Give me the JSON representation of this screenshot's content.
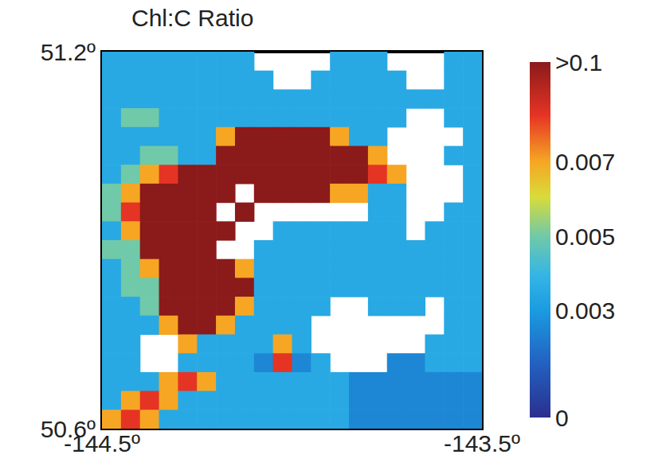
{
  "chart_data": {
    "type": "heatmap",
    "title": "Chl:C Ratio",
    "xlim": [
      -144.5,
      -143.5
    ],
    "ylim": [
      50.6,
      51.2
    ],
    "xticks": [
      {
        "value": -144.5,
        "label": "-144.5º"
      },
      {
        "value": -143.5,
        "label": "-143.5º"
      }
    ],
    "yticks": [
      {
        "value": 50.6,
        "label": "50.6º"
      },
      {
        "value": 51.2,
        "label": "51.2º"
      }
    ],
    "cells": [
      [
        0.0035,
        0.0035,
        0.0035,
        0.0035,
        0.0035,
        0.0035,
        0.0035,
        0.0035,
        null,
        null,
        null,
        null,
        0.0035,
        0.0035,
        0.0035,
        null,
        null,
        null,
        0.0035,
        0.0035
      ],
      [
        0.0035,
        0.0035,
        0.0035,
        0.0035,
        0.0035,
        0.0035,
        0.0035,
        0.0035,
        0.0035,
        null,
        null,
        0.0035,
        0.0035,
        0.0035,
        0.0035,
        0.0035,
        null,
        null,
        0.0035,
        0.0035
      ],
      [
        0.0035,
        0.0035,
        0.0035,
        0.0035,
        0.0035,
        0.0035,
        0.0035,
        0.0035,
        0.0035,
        0.0035,
        0.0035,
        0.0035,
        0.0035,
        0.0035,
        0.0035,
        0.0035,
        0.0035,
        0.0035,
        0.0035,
        0.0035
      ],
      [
        0.0035,
        0.005,
        0.005,
        0.0035,
        0.0035,
        0.0035,
        0.0035,
        0.0035,
        0.0035,
        0.0035,
        0.0035,
        0.0035,
        0.0035,
        0.0035,
        0.0035,
        0.0035,
        null,
        null,
        0.0035,
        0.0035
      ],
      [
        0.0035,
        0.0035,
        0.0035,
        0.0035,
        0.0035,
        0.0035,
        0.007,
        0.1,
        0.1,
        0.1,
        0.1,
        0.1,
        0.007,
        0.0035,
        0.0035,
        null,
        null,
        null,
        null,
        0.0035
      ],
      [
        0.0035,
        0.0035,
        0.005,
        0.005,
        0.0035,
        0.0035,
        0.1,
        0.1,
        0.1,
        0.1,
        0.1,
        0.1,
        0.1,
        0.1,
        0.007,
        null,
        null,
        null,
        0.0035,
        0.0035
      ],
      [
        0.0035,
        0.005,
        0.007,
        0.05,
        0.1,
        0.1,
        0.1,
        0.1,
        0.1,
        0.1,
        0.1,
        0.1,
        0.1,
        0.1,
        0.05,
        0.007,
        null,
        null,
        null,
        0.0035
      ],
      [
        0.005,
        0.007,
        0.1,
        0.1,
        0.1,
        0.1,
        0.1,
        null,
        0.1,
        0.1,
        0.1,
        0.1,
        0.007,
        0.007,
        0.0035,
        0.0035,
        null,
        null,
        null,
        0.0035
      ],
      [
        0.005,
        0.05,
        0.1,
        0.1,
        0.1,
        0.1,
        null,
        0.1,
        null,
        null,
        null,
        null,
        null,
        null,
        0.0035,
        0.0035,
        null,
        null,
        0.0035,
        0.0035
      ],
      [
        0.0035,
        0.007,
        0.1,
        0.1,
        0.1,
        0.1,
        0.1,
        null,
        null,
        0.0035,
        0.0035,
        0.0035,
        0.0035,
        0.0035,
        0.0035,
        0.0035,
        null,
        0.0035,
        0.0035,
        0.0035
      ],
      [
        0.005,
        0.005,
        0.1,
        0.1,
        0.1,
        0.1,
        null,
        null,
        0.0035,
        0.0035,
        0.0035,
        0.0035,
        0.0035,
        0.0035,
        0.0035,
        0.0035,
        0.0035,
        0.0035,
        0.0035,
        0.0035
      ],
      [
        0.0035,
        0.005,
        0.007,
        0.1,
        0.1,
        0.1,
        0.1,
        0.007,
        0.0035,
        0.0035,
        0.0035,
        0.0035,
        0.0035,
        0.0035,
        0.0035,
        0.0035,
        0.0035,
        0.0035,
        0.0035,
        0.0035
      ],
      [
        0.0035,
        0.005,
        0.005,
        0.1,
        0.1,
        0.1,
        0.1,
        0.1,
        0.0035,
        0.0035,
        0.0035,
        0.0035,
        0.0035,
        0.0035,
        0.0035,
        0.0035,
        0.0035,
        0.0035,
        0.0035,
        0.0035
      ],
      [
        0.0035,
        0.0035,
        0.005,
        0.1,
        0.1,
        0.1,
        0.1,
        0.007,
        0.0035,
        0.0035,
        0.0035,
        0.0035,
        null,
        null,
        0.0035,
        0.0035,
        0.0035,
        null,
        0.0035,
        0.0035
      ],
      [
        0.0035,
        0.0035,
        0.0035,
        0.007,
        0.1,
        0.1,
        0.007,
        0.0035,
        0.0035,
        0.0035,
        0.0035,
        null,
        null,
        null,
        null,
        null,
        null,
        null,
        0.0035,
        0.0035
      ],
      [
        0.0035,
        0.0035,
        null,
        null,
        0.007,
        0.0035,
        0.0035,
        0.0035,
        0.0035,
        0.007,
        0.0035,
        null,
        null,
        null,
        null,
        null,
        null,
        0.0035,
        0.0035,
        0.0035
      ],
      [
        0.0035,
        0.0035,
        null,
        null,
        0.0035,
        0.0035,
        0.0035,
        0.0035,
        0.0025,
        0.05,
        0.0025,
        0.0035,
        null,
        null,
        null,
        0.0025,
        0.0025,
        0.0035,
        0.0035,
        0.0035
      ],
      [
        0.0035,
        0.0035,
        0.0035,
        0.007,
        0.05,
        0.007,
        0.0035,
        0.0035,
        0.0035,
        0.0035,
        0.0035,
        0.0035,
        0.0035,
        0.0025,
        0.0025,
        0.0025,
        0.0025,
        0.0025,
        0.0025,
        0.0025
      ],
      [
        0.0035,
        0.007,
        0.05,
        0.007,
        0.0035,
        0.0035,
        0.0035,
        0.0035,
        0.0035,
        0.0035,
        0.0035,
        0.0035,
        0.0035,
        0.0025,
        0.0025,
        0.0025,
        0.0025,
        0.0025,
        0.0025,
        0.0025
      ],
      [
        0.007,
        0.05,
        0.007,
        0.0035,
        0.0035,
        0.0035,
        0.0035,
        0.0035,
        0.0035,
        0.0035,
        0.0035,
        0.0035,
        0.0035,
        0.0025,
        0.0025,
        0.0025,
        0.0025,
        0.0025,
        0.0025,
        0.0025
      ]
    ],
    "colorbar": {
      "range": [
        0,
        0.1
      ],
      "ticks": [
        0,
        0.003,
        0.005,
        0.007,
        {
          "value": 0.1,
          "label": ">0.1"
        }
      ]
    }
  }
}
